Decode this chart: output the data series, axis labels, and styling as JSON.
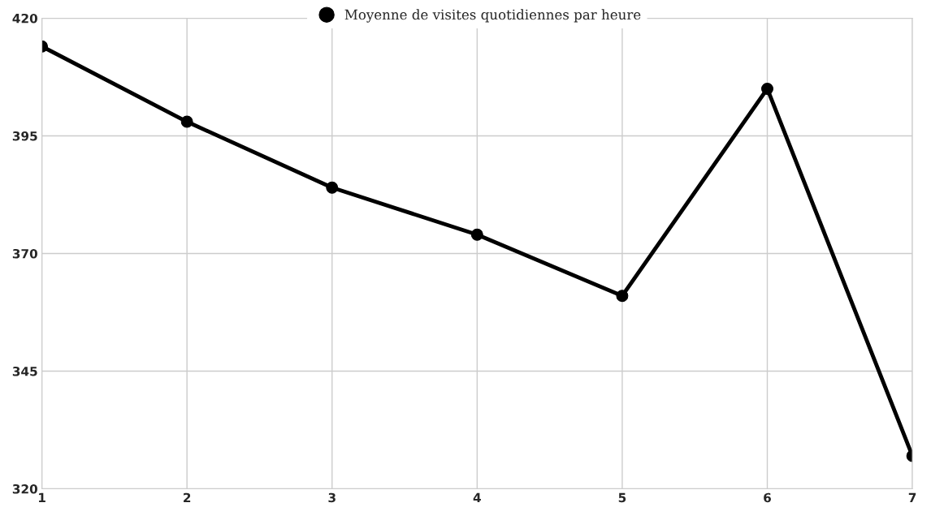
{
  "chart_data": {
    "type": "line",
    "x": [
      1,
      2,
      3,
      4,
      5,
      6,
      7
    ],
    "series": [
      {
        "name": "Moyenne de visites quotidiennes par heure",
        "color": "#000000",
        "values": [
          414,
          398,
          384,
          374,
          361,
          405,
          327
        ]
      }
    ],
    "xlim": [
      1,
      7
    ],
    "xticks": [
      1,
      2,
      3,
      4,
      5,
      6,
      7
    ],
    "ylim": [
      320,
      420
    ],
    "yticks": [
      320,
      345,
      370,
      395,
      420
    ],
    "grid": true,
    "legend": "top",
    "marker": "circle",
    "line_style": "solid"
  }
}
